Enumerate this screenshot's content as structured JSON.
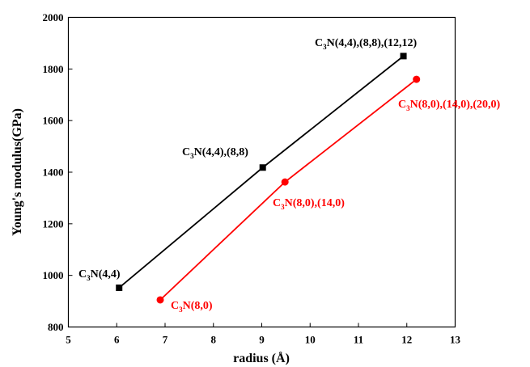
{
  "chart_data": {
    "type": "line",
    "xlabel": "radius (Å)",
    "ylabel": "Young's modulus(GPa)",
    "xlim": [
      5,
      13
    ],
    "ylim": [
      800,
      2000
    ],
    "xticks": [
      5,
      6,
      7,
      8,
      9,
      10,
      11,
      12,
      13
    ],
    "yticks": [
      800,
      1000,
      1200,
      1400,
      1600,
      1800,
      2000
    ],
    "grid": false,
    "legend": "none",
    "series": [
      {
        "color": "#000000",
        "marker": "square",
        "x": [
          6.05,
          9.02,
          11.93
        ],
        "y": [
          952,
          1418,
          1850
        ],
        "labels": [
          "C3N(4,4)",
          "C3N(4,4),(8,8)",
          "C3N(4,4),(8,8),(12,12)"
        ]
      },
      {
        "color": "#ff0000",
        "marker": "circle",
        "x": [
          6.9,
          9.48,
          12.2
        ],
        "y": [
          905,
          1362,
          1760
        ],
        "labels": [
          "C3N(8,0)",
          "C3N(8,0),(14,0)",
          "C3N(8,0),(14,0),(20,0)"
        ]
      }
    ]
  }
}
